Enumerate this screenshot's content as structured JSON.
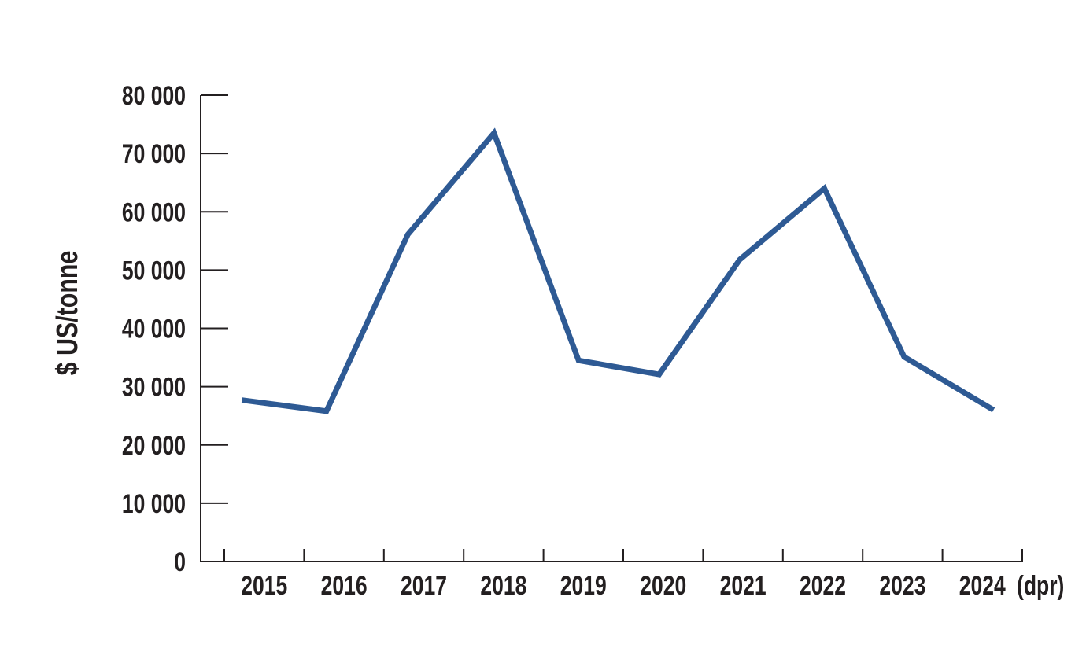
{
  "chart_data": {
    "type": "line",
    "title": "",
    "xlabel": "",
    "ylabel": "$ US/tonne",
    "x_suffix": "(dpr)",
    "categories": [
      "2015",
      "2016",
      "2017",
      "2018",
      "2019",
      "2020",
      "2021",
      "2022",
      "2023",
      "2024"
    ],
    "series": [
      {
        "values": [
          27700,
          25800,
          56100,
          73500,
          34500,
          32100,
          51800,
          64000,
          35100,
          26000
        ],
        "color": "#2e5a94"
      }
    ],
    "ylim": [
      0,
      80000
    ],
    "yticks": [
      0,
      10000,
      20000,
      30000,
      40000,
      50000,
      60000,
      70000,
      80000
    ],
    "ytick_labels": [
      "0",
      "10 000",
      "20 000",
      "30 000",
      "40 000",
      "50 000",
      "60 000",
      "70 000",
      "80 000"
    ],
    "grid": false,
    "legend": "none"
  }
}
